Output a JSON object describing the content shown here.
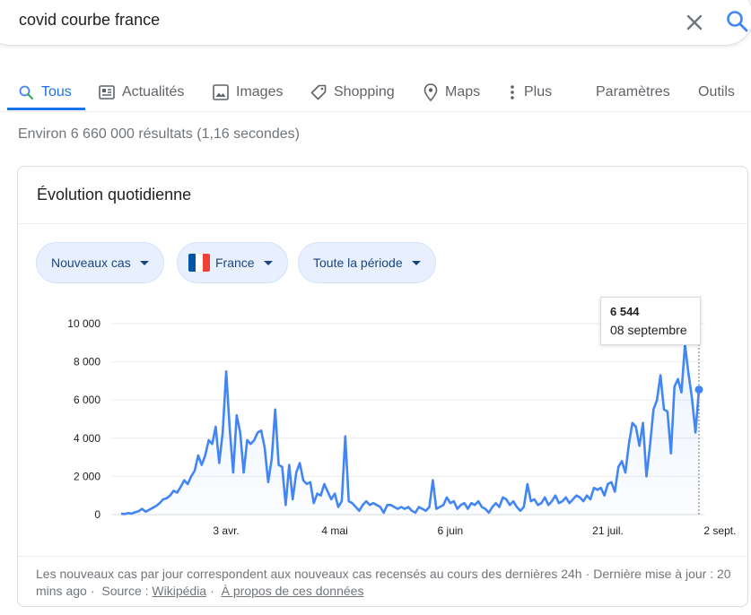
{
  "search": {
    "query": "covid courbe france"
  },
  "tabs": [
    {
      "label": "Tous",
      "icon": "search-icon"
    },
    {
      "label": "Actualités",
      "icon": "news-icon"
    },
    {
      "label": "Images",
      "icon": "image-icon"
    },
    {
      "label": "Shopping",
      "icon": "tag-icon"
    },
    {
      "label": "Maps",
      "icon": "map-pin-icon"
    },
    {
      "label": "Plus",
      "icon": "more-vert-icon"
    },
    {
      "label": "Paramètres"
    },
    {
      "label": "Outils"
    }
  ],
  "stats": "Environ 6 660 000 résultats (1,16 secondes)",
  "card": {
    "title": "Évolution quotidienne",
    "chips": {
      "metric": "Nouveaux cas",
      "region": "France",
      "period": "Toute la période"
    },
    "tooltip": {
      "value": "6 544",
      "date": "08 septembre"
    },
    "footer": {
      "text": "Les nouveaux cas par jour correspondent aux nouveaux cas recensés au cours des dernières 24h",
      "updated": "Dernière mise à jour : 20 mins ago",
      "source_prefix": "Source :",
      "source_link": "Wikipédia",
      "about_link": "À propos de ces données"
    }
  },
  "colors": {
    "accent": "#1a73e8",
    "line": "#4285f4",
    "flag_blue": "#0055a4",
    "flag_red": "#ef4135"
  },
  "chart_data": {
    "type": "line",
    "y_ticks": [
      "10 000",
      "8 000",
      "6 000",
      "4 000",
      "2 000",
      "0"
    ],
    "x_ticks": [
      "3 avr.",
      "4 mai",
      "6 juin",
      "21 juil.",
      "2 sept."
    ],
    "ylim": [
      0,
      10000
    ],
    "grid": true,
    "values": [
      50,
      30,
      80,
      50,
      120,
      180,
      300,
      150,
      250,
      350,
      450,
      600,
      800,
      850,
      1000,
      1250,
      1150,
      1450,
      1800,
      1600,
      2000,
      2300,
      3100,
      2600,
      3100,
      3900,
      3700,
      4600,
      2700,
      4300,
      7500,
      4500,
      2200,
      5200,
      4300,
      2200,
      3900,
      3700,
      3900,
      4300,
      4400,
      3500,
      1700,
      2900,
      5500,
      2600,
      2500,
      500,
      2600,
      800,
      2200,
      2700,
      1800,
      1600,
      1700,
      600,
      1100,
      1000,
      1600,
      1200,
      800,
      1100,
      400,
      700,
      4100,
      700,
      600,
      400,
      200,
      500,
      700,
      500,
      600,
      500,
      400,
      100,
      500,
      500,
      400,
      300,
      400,
      300,
      400,
      200,
      100,
      400,
      300,
      200,
      400,
      1800,
      300,
      400,
      500,
      900,
      600,
      700,
      300,
      500,
      600,
      300,
      600,
      500,
      700,
      400,
      300,
      100,
      400,
      600,
      400,
      900,
      800,
      500,
      700,
      400,
      200,
      400,
      1600,
      700,
      800,
      500,
      600,
      900,
      500,
      700,
      1000,
      600,
      700,
      900,
      600,
      800,
      1000,
      900,
      700,
      1000,
      800,
      1400,
      1300,
      1400,
      1000,
      1600,
      1700,
      1200,
      2500,
      2800,
      2200,
      3700,
      4800,
      4600,
      3600,
      4800,
      2000,
      3600,
      5500,
      6000,
      7300,
      5500,
      5400,
      3200,
      6700,
      7100,
      6400,
      8900,
      7400,
      6100,
      4300,
      6544
    ]
  }
}
